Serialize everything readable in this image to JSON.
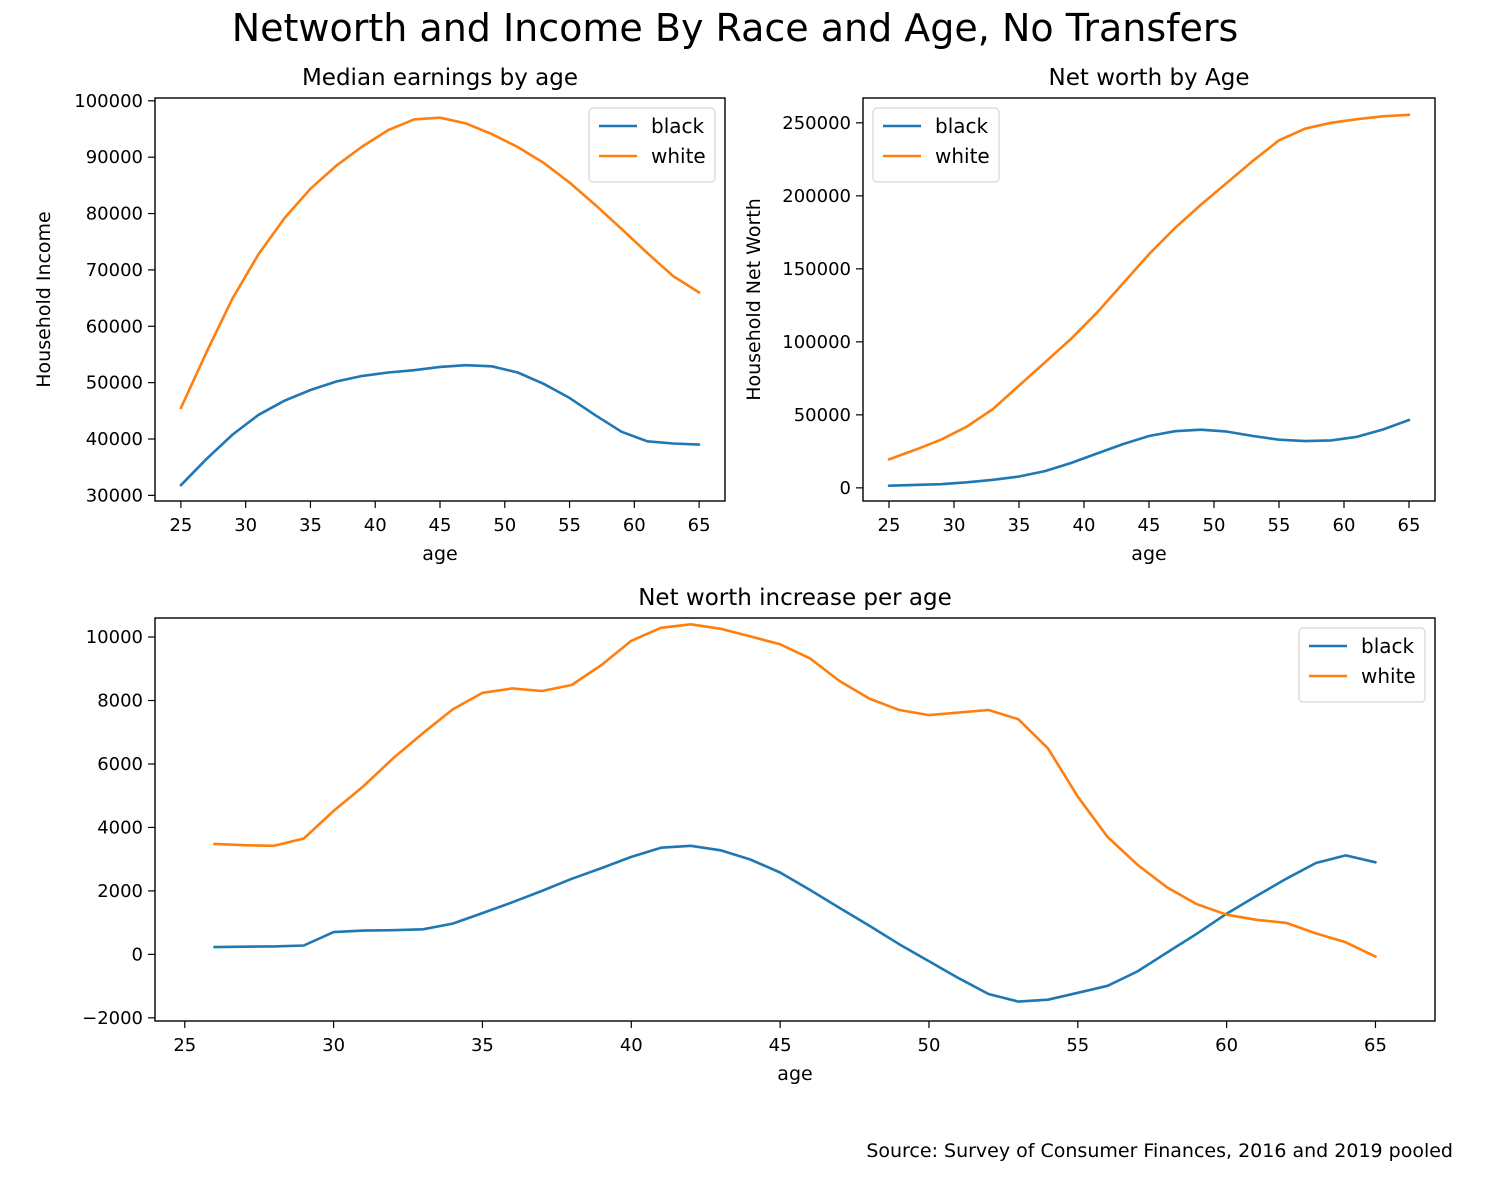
{
  "figure": {
    "title": "Networth and Income By Race and Age, No Transfers",
    "source": "Source: Survey of Consumer Finances, 2016 and 2019 pooled"
  },
  "colors": {
    "black": "#1f77b4",
    "white": "#ff7f0e"
  },
  "chart_data": [
    {
      "type": "line",
      "title": "Median earnings by age",
      "xlabel": "age",
      "ylabel": "Household Income",
      "xlim": [
        23,
        67
      ],
      "ylim": [
        29000,
        100500
      ],
      "xticks": [
        25,
        30,
        35,
        40,
        45,
        50,
        55,
        60,
        65
      ],
      "yticks": [
        30000,
        40000,
        50000,
        60000,
        70000,
        80000,
        90000,
        100000
      ],
      "grid": false,
      "legend": "upper right",
      "x": [
        25,
        27,
        29,
        31,
        33,
        35,
        37,
        39,
        41,
        43,
        45,
        47,
        49,
        51,
        53,
        55,
        57,
        59,
        61,
        63,
        65
      ],
      "series": [
        {
          "name": "black",
          "color": "#1f77b4",
          "values": [
            31800,
            36500,
            40800,
            44300,
            46800,
            48700,
            50200,
            51200,
            51800,
            52200,
            52800,
            53100,
            52900,
            51800,
            49800,
            47300,
            44200,
            41300,
            39600,
            39200,
            39000
          ]
        },
        {
          "name": "white",
          "color": "#ff7f0e",
          "values": [
            45500,
            55500,
            65000,
            72800,
            79200,
            84400,
            88500,
            91900,
            94800,
            96700,
            97000,
            96000,
            94100,
            91800,
            89000,
            85500,
            81500,
            77300,
            73000,
            68900,
            66000
          ]
        }
      ]
    },
    {
      "type": "line",
      "title": "Net worth by Age",
      "xlabel": "age",
      "ylabel": "Household Net Worth",
      "xlim": [
        23,
        67
      ],
      "ylim": [
        -9000,
        267000
      ],
      "xticks": [
        25,
        30,
        35,
        40,
        45,
        50,
        55,
        60,
        65
      ],
      "yticks": [
        0,
        50000,
        100000,
        150000,
        200000,
        250000
      ],
      "grid": false,
      "legend": "upper left",
      "x": [
        25,
        27,
        29,
        31,
        33,
        35,
        37,
        39,
        41,
        43,
        45,
        47,
        49,
        51,
        53,
        55,
        57,
        59,
        61,
        63,
        65
      ],
      "series": [
        {
          "name": "black",
          "color": "#1f77b4",
          "values": [
            1500,
            2000,
            2500,
            3800,
            5500,
            7800,
            11500,
            17000,
            23500,
            30000,
            35500,
            38800,
            39800,
            38500,
            35500,
            33000,
            32000,
            32500,
            35000,
            40000,
            46500
          ]
        },
        {
          "name": "white",
          "color": "#ff7f0e",
          "values": [
            19500,
            26000,
            33000,
            42000,
            54000,
            70000,
            86000,
            102000,
            120000,
            140000,
            160000,
            178000,
            194000,
            209000,
            224000,
            238000,
            246000,
            250000,
            252500,
            254500,
            255500
          ]
        }
      ]
    },
    {
      "type": "line",
      "title": "Net worth increase per age",
      "xlabel": "age",
      "ylabel": "",
      "xlim": [
        24,
        67
      ],
      "ylim": [
        -2100,
        10600
      ],
      "xticks": [
        25,
        30,
        35,
        40,
        45,
        50,
        55,
        60,
        65
      ],
      "yticks": [
        -2000,
        0,
        2000,
        4000,
        6000,
        8000,
        10000
      ],
      "grid": false,
      "legend": "upper right",
      "x": [
        26,
        27,
        28,
        29,
        30,
        31,
        32,
        33,
        34,
        35,
        36,
        37,
        38,
        39,
        40,
        41,
        42,
        43,
        44,
        45,
        46,
        47,
        48,
        49,
        50,
        51,
        52,
        53,
        54,
        55,
        56,
        57,
        58,
        59,
        60,
        61,
        62,
        63,
        64,
        65
      ],
      "series": [
        {
          "name": "black",
          "color": "#1f77b4",
          "values": [
            230,
            240,
            250,
            280,
            700,
            750,
            760,
            790,
            970,
            1300,
            1640,
            2000,
            2380,
            2720,
            3070,
            3360,
            3420,
            3280,
            2990,
            2580,
            2030,
            1460,
            900,
            320,
            -220,
            -750,
            -1250,
            -1490,
            -1430,
            -1210,
            -990,
            -540,
            60,
            650,
            1280,
            1840,
            2380,
            2880,
            3120,
            2900
          ]
        },
        {
          "name": "white",
          "color": "#ff7f0e",
          "values": [
            3480,
            3440,
            3420,
            3650,
            4520,
            5300,
            6180,
            6970,
            7720,
            8240,
            8380,
            8300,
            8490,
            9120,
            9880,
            10290,
            10400,
            10260,
            10020,
            9770,
            9330,
            8610,
            8060,
            7700,
            7540,
            7620,
            7700,
            7410,
            6490,
            4970,
            3700,
            2830,
            2110,
            1580,
            1250,
            1090,
            990,
            660,
            380,
            -70
          ]
        }
      ]
    }
  ]
}
